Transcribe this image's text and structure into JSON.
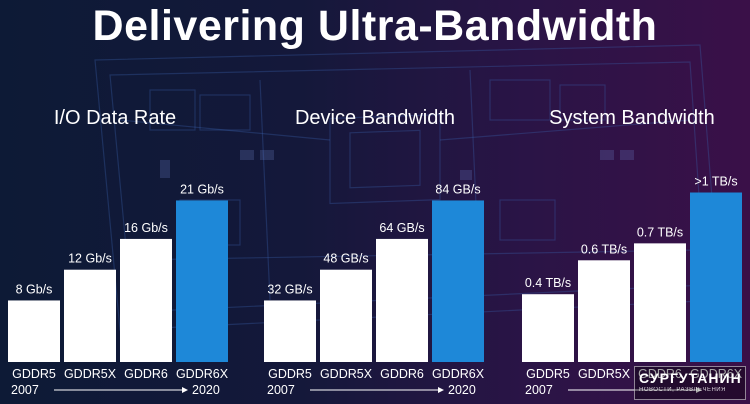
{
  "slide": {
    "title": "Delivering Ultra-Bandwidth",
    "timeline": {
      "start": "2007",
      "end": "2020"
    },
    "watermark": {
      "main": "СУРГУТАНИН",
      "sub": "НОВОСТИ, РАЗВЛЕЧЕНИЯ"
    }
  },
  "colors": {
    "bar_default": "#ffffff",
    "bar_highlight": "#1e88d8",
    "text": "#ffffff"
  },
  "chart_data": [
    {
      "type": "bar",
      "title": "I/O Data Rate",
      "categories": [
        "GDDR5",
        "GDDR5X",
        "GDDR6",
        "GDDR6X"
      ],
      "values": [
        8,
        12,
        16,
        21
      ],
      "labels": [
        "8 Gb/s",
        "12 Gb/s",
        "16 Gb/s",
        "21 Gb/s"
      ],
      "unit": "Gb/s",
      "highlight_index": 3,
      "ylim": [
        0,
        26
      ],
      "grid": false
    },
    {
      "type": "bar",
      "title": "Device Bandwidth",
      "categories": [
        "GDDR5",
        "GDDR5X",
        "GDDR6",
        "GDDR6X"
      ],
      "values": [
        32,
        48,
        64,
        84
      ],
      "labels": [
        "32 GB/s",
        "48 GB/s",
        "64 GB/s",
        "84 GB/s"
      ],
      "unit": "GB/s",
      "highlight_index": 3,
      "ylim": [
        0,
        104
      ],
      "grid": false
    },
    {
      "type": "bar",
      "title": "System Bandwidth",
      "categories": [
        "GDDR5",
        "GDDR5X",
        "GDDR6",
        "GDDR6X"
      ],
      "values": [
        0.4,
        0.6,
        0.7,
        1.0
      ],
      "labels": [
        "0.4 TB/s",
        "0.6 TB/s",
        "0.7 TB/s",
        ">1 TB/s"
      ],
      "unit": "TB/s",
      "highlight_index": 3,
      "ylim": [
        0,
        1.18
      ],
      "grid": false
    }
  ]
}
